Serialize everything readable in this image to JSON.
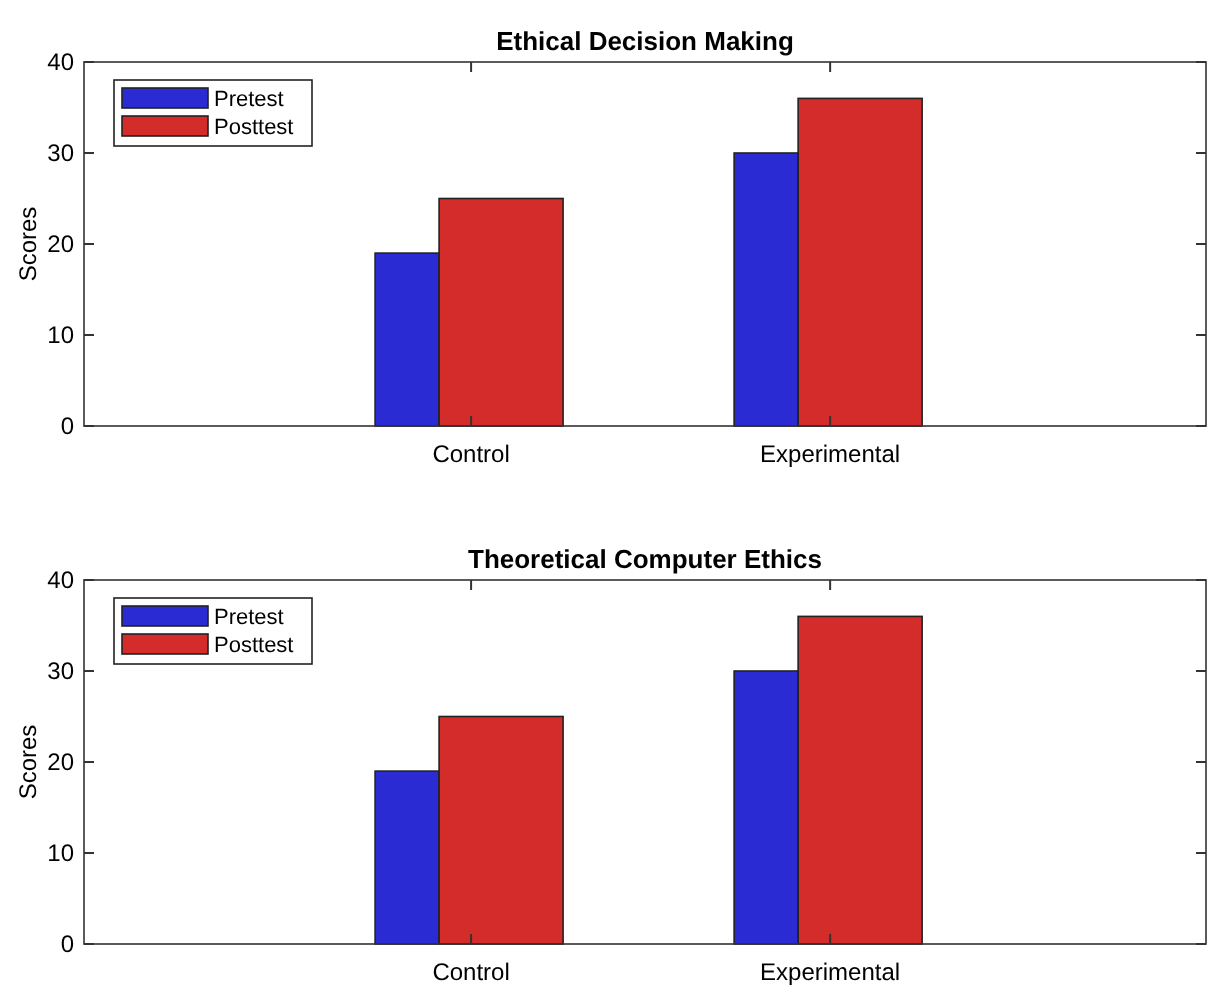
{
  "chart_data": [
    {
      "type": "bar",
      "title": "Ethical Decision Making",
      "ylabel": "Scores",
      "categories": [
        "Control",
        "Experimental"
      ],
      "series": [
        {
          "name": "Pretest",
          "color": "#2b2bd4",
          "values": [
            19,
            30
          ]
        },
        {
          "name": "Posttest",
          "color": "#d42b2b",
          "values": [
            25,
            36
          ]
        }
      ],
      "ylim": [
        0,
        40
      ],
      "yticks": [
        0,
        10,
        20,
        30,
        40
      ],
      "legend": "top left"
    },
    {
      "type": "bar",
      "title": "Theoretical Computer Ethics",
      "ylabel": "Scores",
      "categories": [
        "Control",
        "Experimental"
      ],
      "series": [
        {
          "name": "Pretest",
          "color": "#2b2bd4",
          "values": [
            19,
            30
          ]
        },
        {
          "name": "Posttest",
          "color": "#d42b2b",
          "values": [
            25,
            36
          ]
        }
      ],
      "ylim": [
        0,
        40
      ],
      "yticks": [
        0,
        10,
        20,
        30,
        40
      ],
      "legend": "top left"
    }
  ]
}
